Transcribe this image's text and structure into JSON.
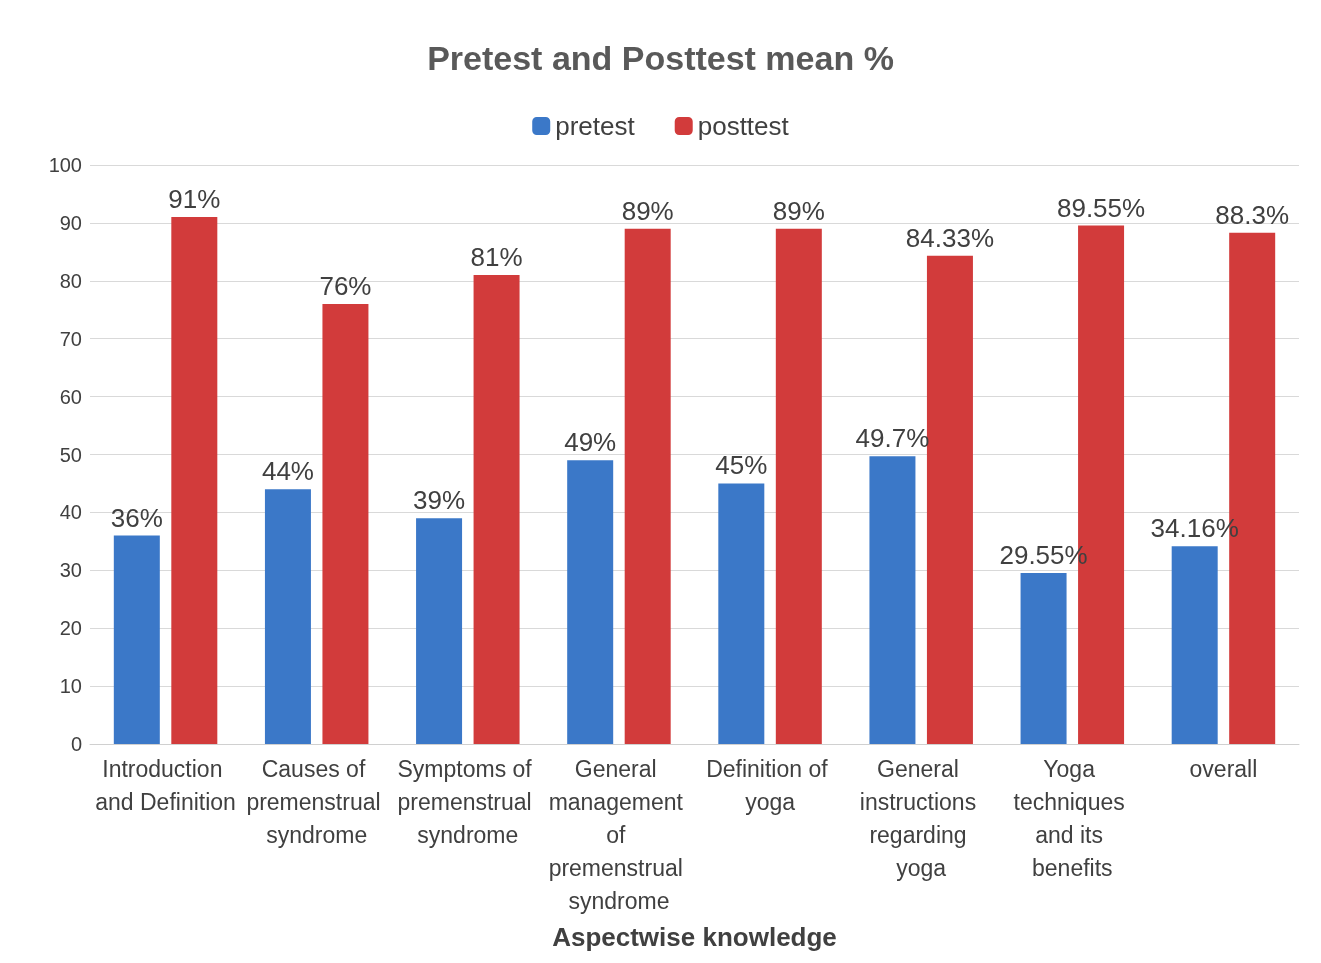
{
  "chart_data": {
    "type": "bar",
    "title": "Pretest and Posttest mean %",
    "xlabel": "Aspectwise knowledge",
    "categories": [
      "Introduction and Definition",
      "Causes of premenstrual syndrome",
      "Symptoms of premenstrual syndrome",
      "General management of premenstrual syndrome",
      "Definition of yoga",
      "General instructions regarding yoga",
      "Yoga techniques and its benefits",
      "overall"
    ],
    "series": [
      {
        "name": "pretest",
        "color": "#3b78c8",
        "values": [
          36,
          44,
          39,
          49,
          45,
          49.7,
          29.55,
          34.16
        ],
        "value_labels": [
          "36%",
          "44%",
          "39%",
          "49%",
          "45%",
          "49.7%",
          "29.55%",
          "34.16%"
        ]
      },
      {
        "name": "posttest",
        "color": "#d23b3b",
        "values": [
          91,
          76,
          81,
          89,
          89,
          84.33,
          89.55,
          88.3
        ],
        "value_labels": [
          "91%",
          "76%",
          "81%",
          "89%",
          "89%",
          "84.33%",
          "89.55%",
          "88.3%"
        ]
      }
    ],
    "ylim": [
      0,
      100
    ],
    "yticks": [
      0,
      10,
      20,
      30,
      40,
      50,
      60,
      70,
      80,
      90,
      100
    ],
    "grid": "y",
    "legend": "top"
  }
}
